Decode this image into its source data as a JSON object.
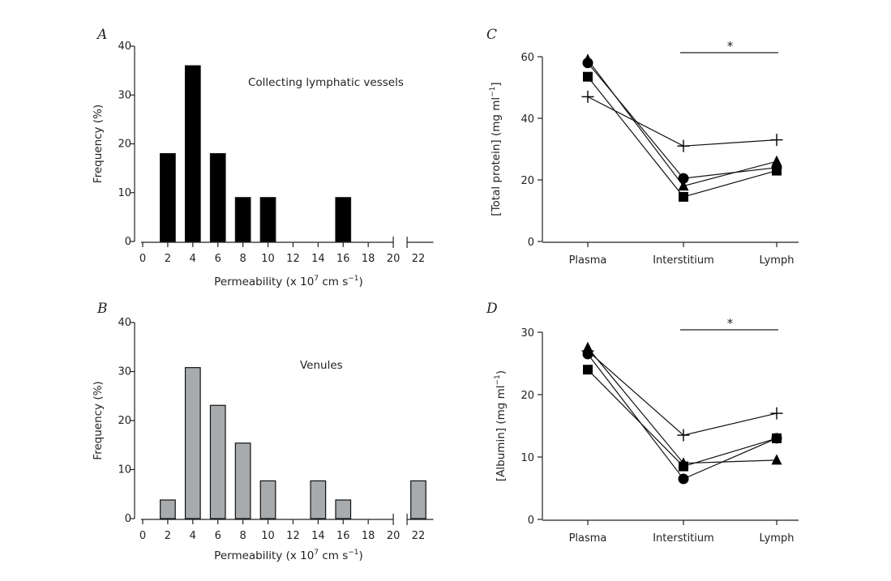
{
  "chart_data": [
    {
      "panel": "A",
      "type": "bar",
      "annotation": "Collecting lymphatic vessels",
      "xlabel": "Permeability (x 10",
      "xlabel_sup": "7",
      "xlabel_tail": " cm s",
      "xlabel_tail_sup": "−1",
      "xlabel_close": ")",
      "ylabel": "Frequency (%)",
      "ylim": [
        0,
        40
      ],
      "yticks": [
        0,
        10,
        20,
        30,
        40
      ],
      "xticks": [
        0,
        2,
        4,
        6,
        8,
        10,
        12,
        14,
        16,
        18,
        20,
        22
      ],
      "x": [
        2,
        4,
        6,
        8,
        10,
        16
      ],
      "values": [
        18,
        36,
        18,
        9,
        9,
        9
      ],
      "bar_color": "#000000",
      "axis_break": "between 20 and 22"
    },
    {
      "panel": "B",
      "type": "bar",
      "annotation": "Venules",
      "xlabel": "Permeability (x 10",
      "xlabel_sup": "7",
      "xlabel_tail": " cm s",
      "xlabel_tail_sup": "−1",
      "xlabel_close": ")",
      "ylabel": "Frequency (%)",
      "ylim": [
        0,
        40
      ],
      "yticks": [
        0,
        10,
        20,
        30,
        40
      ],
      "xticks": [
        0,
        2,
        4,
        6,
        8,
        10,
        12,
        14,
        16,
        18,
        20,
        22
      ],
      "x": [
        2,
        4,
        6,
        8,
        10,
        14,
        16,
        22
      ],
      "values": [
        3.8,
        30.8,
        23.1,
        15.4,
        7.7,
        7.7,
        3.8,
        7.7
      ],
      "bar_color": "#a7abae",
      "axis_break": "between 20 and 22"
    },
    {
      "panel": "C",
      "type": "line",
      "ylabel": "[Total protein] (mg ml",
      "ylabel_sup": "−1",
      "ylabel_close": "]",
      "categories": [
        "Plasma",
        "Interstitium",
        "Lymph"
      ],
      "ylim": [
        0,
        60
      ],
      "yticks": [
        0,
        20,
        40,
        60
      ],
      "significance": {
        "from": "Interstitium",
        "to": "Lymph",
        "label": "*",
        "y": 61
      },
      "series": [
        {
          "marker": "triangle",
          "values": [
            59,
            18,
            26
          ]
        },
        {
          "marker": "circle",
          "values": [
            58,
            20.5,
            24
          ]
        },
        {
          "marker": "square",
          "values": [
            53.5,
            14.5,
            23
          ]
        },
        {
          "marker": "plus",
          "values": [
            47,
            31,
            33
          ]
        }
      ]
    },
    {
      "panel": "D",
      "type": "line",
      "ylabel": "[Albumin] (mg ml",
      "ylabel_sup": "−1",
      "ylabel_close": ")",
      "categories": [
        "Plasma",
        "Interstitium",
        "Lymph"
      ],
      "ylim": [
        0,
        30
      ],
      "yticks": [
        0,
        10,
        20,
        30
      ],
      "significance": {
        "from": "Interstitium",
        "to": "Lymph",
        "label": "*",
        "y": 30.5
      },
      "series": [
        {
          "marker": "triangle",
          "values": [
            27.5,
            9,
            9.5
          ]
        },
        {
          "marker": "circle",
          "values": [
            26.5,
            6.5,
            13
          ]
        },
        {
          "marker": "square",
          "values": [
            24,
            8.5,
            13
          ]
        },
        {
          "marker": "plus",
          "values": [
            27,
            13.5,
            17
          ]
        }
      ]
    }
  ]
}
